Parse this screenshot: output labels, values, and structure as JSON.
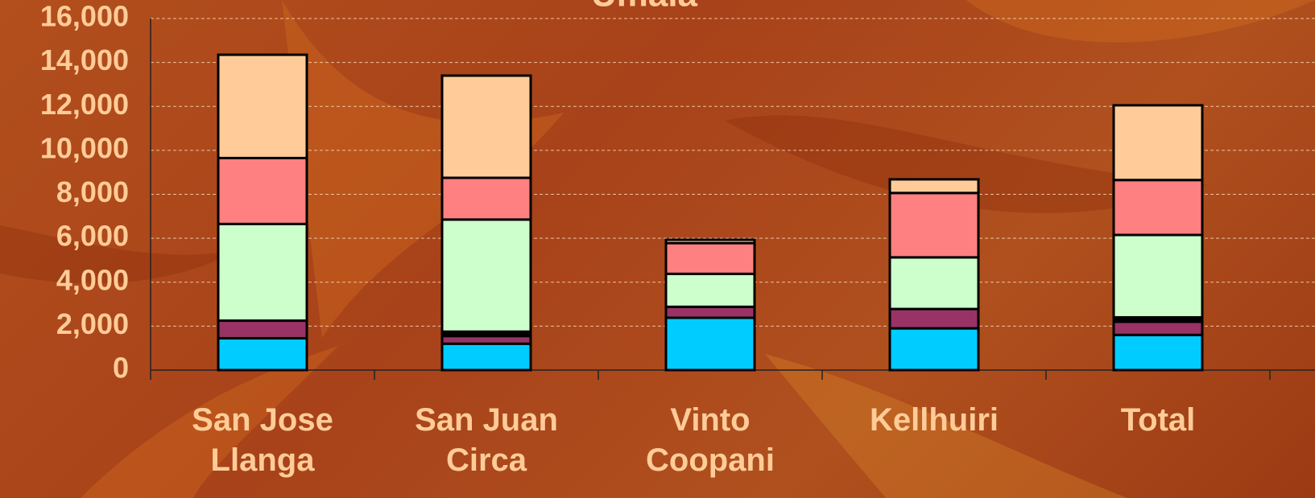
{
  "chart_data": {
    "type": "stacked_bar",
    "title": "Umala",
    "categories": [
      "San Jose Llanga",
      "San Juan Circa",
      "Vinto Coopani",
      "Kellhuiri",
      "Total"
    ],
    "series": [
      {
        "color": "#00ccff",
        "values": [
          1450,
          1200,
          2380,
          1900,
          1600
        ]
      },
      {
        "color": "#993366",
        "values": [
          800,
          350,
          500,
          880,
          600
        ]
      },
      {
        "color": "#000000",
        "values": [
          0,
          200,
          0,
          0,
          200
        ]
      },
      {
        "color": "#ccffcc",
        "values": [
          4400,
          5100,
          1500,
          2350,
          3750
        ]
      },
      {
        "color": "#ff8080",
        "values": [
          3000,
          1900,
          1400,
          2930,
          2500
        ]
      },
      {
        "color": "#ffcc99",
        "values": [
          4700,
          4650,
          150,
          620,
          3400
        ]
      }
    ],
    "ylim": [
      0,
      16000
    ],
    "yticks": [
      0,
      {
        "value": 2000,
        "label": "2,000"
      },
      {
        "value": 4000,
        "label": "4,000"
      },
      {
        "value": 6000,
        "label": "6,000"
      },
      {
        "value": 8000,
        "label": "8,000"
      },
      {
        "value": 10000,
        "label": "10,000"
      },
      {
        "value": 12000,
        "label": "12,000"
      },
      {
        "value": 14000,
        "label": "14,000"
      },
      {
        "value": 16000,
        "label": "16,000"
      }
    ],
    "grid": true
  }
}
